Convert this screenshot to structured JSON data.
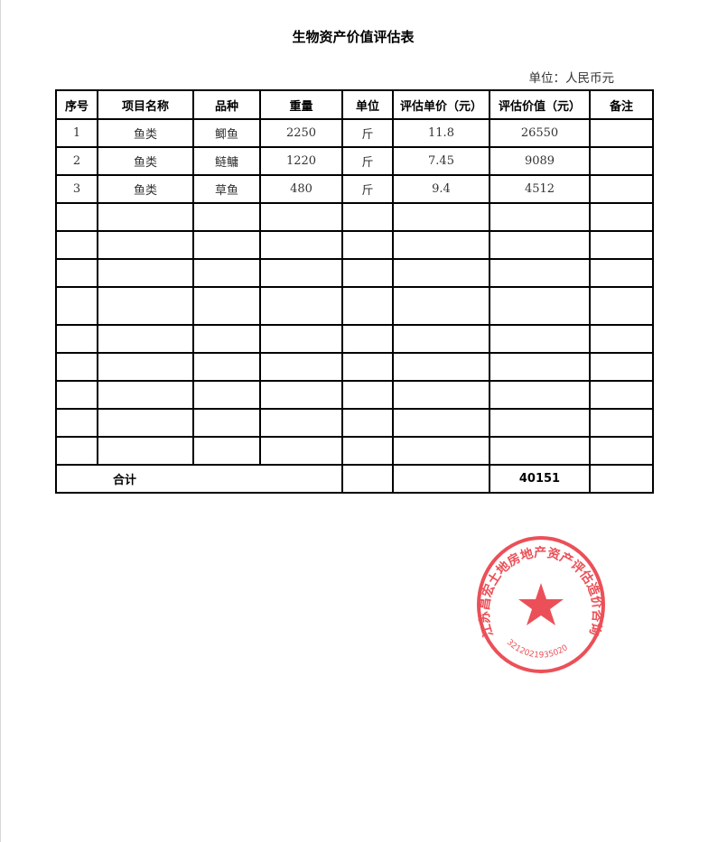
{
  "title": "生物资产价值评估表",
  "unit_note": "单位：人民币元",
  "columns": [
    "序号",
    "项目名称",
    "品种",
    "重量",
    "单位",
    "评估单价（元）",
    "评估价值（元）",
    "备注"
  ],
  "rows": [
    [
      "1",
      "鱼类",
      "鲫鱼",
      "2250",
      "斤",
      "11.8",
      "26550",
      ""
    ],
    [
      "2",
      "鱼类",
      "鲢鳙",
      "1220",
      "斤",
      "7.45",
      "9089",
      ""
    ],
    [
      "3",
      "鱼类",
      "草鱼",
      "480",
      "斤",
      "9.4",
      "4512",
      ""
    ]
  ],
  "empty_rows": 9,
  "total": {
    "label": "合计",
    "value": "40151"
  },
  "seal": {
    "text": "江苏昌宏土地房地产资产评估造价咨询有限公司",
    "code": "3212021935020",
    "color": "#e8323c"
  }
}
